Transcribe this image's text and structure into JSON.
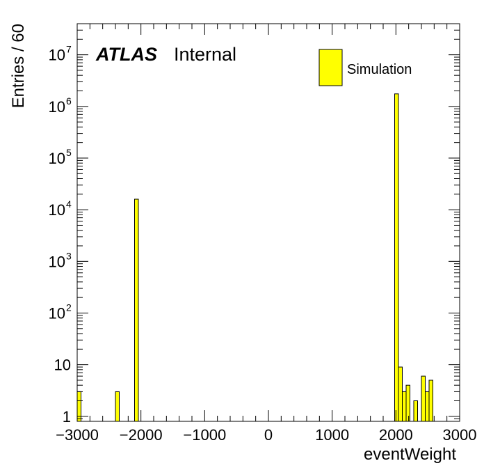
{
  "chart_data": {
    "type": "bar",
    "histogram": true,
    "xlabel": "eventWeight",
    "ylabel": "Entries / 60",
    "xlim": [
      -3000,
      3000
    ],
    "ylim": [
      0.8,
      40000000
    ],
    "yscale": "log",
    "x_tick_labels": [
      "−3000",
      "−2000",
      "−1000",
      "0",
      "1000",
      "2000",
      "3000"
    ],
    "y_tick_labels": [
      {
        "value": 1,
        "base": "1",
        "exp": ""
      },
      {
        "value": 10,
        "base": "10",
        "exp": ""
      },
      {
        "value": 100,
        "base": "10",
        "exp": "2"
      },
      {
        "value": 1000,
        "base": "10",
        "exp": "3"
      },
      {
        "value": 10000,
        "base": "10",
        "exp": "4"
      },
      {
        "value": 100000,
        "base": "10",
        "exp": "5"
      },
      {
        "value": 1000000,
        "base": "10",
        "exp": "6"
      },
      {
        "value": 10000000,
        "base": "10",
        "exp": "7"
      }
    ],
    "bin_width": 60,
    "bins": [
      {
        "x_low": -3000,
        "x_high": -2940,
        "value": 3
      },
      {
        "x_low": -2400,
        "x_high": -2340,
        "value": 3
      },
      {
        "x_low": -2100,
        "x_high": -2040,
        "value": 16000
      },
      {
        "x_low": 1980,
        "x_high": 2040,
        "value": 1750000
      },
      {
        "x_low": 2040,
        "x_high": 2100,
        "value": 9
      },
      {
        "x_low": 2100,
        "x_high": 2160,
        "value": 3
      },
      {
        "x_low": 2160,
        "x_high": 2220,
        "value": 4
      },
      {
        "x_low": 2280,
        "x_high": 2340,
        "value": 2
      },
      {
        "x_low": 2400,
        "x_high": 2460,
        "value": 6
      },
      {
        "x_low": 2460,
        "x_high": 2520,
        "value": 3
      },
      {
        "x_low": 2520,
        "x_high": 2580,
        "value": 5
      }
    ],
    "series": [
      {
        "name": "Simulation",
        "color": "#ffff00"
      }
    ],
    "legend_position": "top-right",
    "grid": false
  },
  "labels": {
    "atlas": "ATLAS",
    "internal": "Internal"
  }
}
